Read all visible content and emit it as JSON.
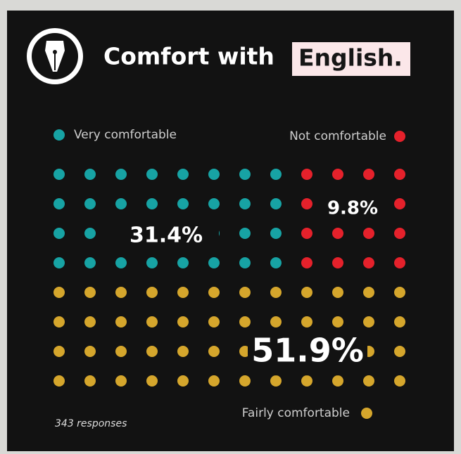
{
  "chart_data": {
    "type": "waffle",
    "title": "Comfort with",
    "title_highlight": "English.",
    "categories": [
      "Very comfortable",
      "Not comfortable",
      "Fairly comfortable"
    ],
    "values": [
      31.4,
      9.8,
      51.9
    ],
    "value_labels": [
      "31.4%",
      "9.8%",
      "51.9%"
    ],
    "colors": [
      "#17a3a4",
      "#e5212b",
      "#d5a62c"
    ],
    "note": "343 responses"
  }
}
